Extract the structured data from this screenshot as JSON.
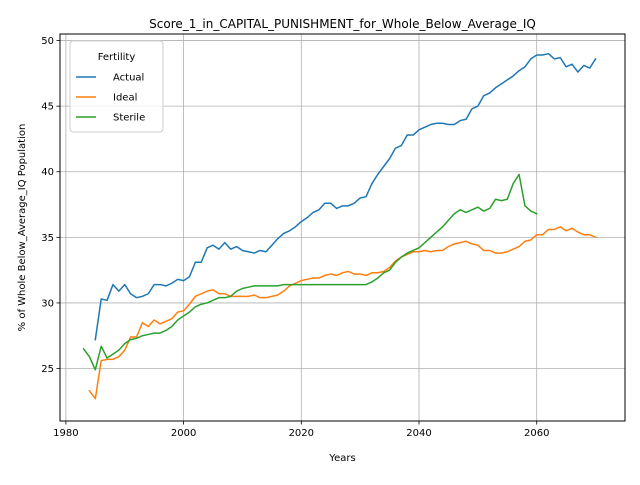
{
  "chart_data": {
    "type": "line",
    "title": "Score_1_in_CAPITAL_PUNISHMENT_for_Whole_Below_Average_IQ",
    "xlabel": "Years",
    "ylabel": "% of Whole Below_Average_IQ Population",
    "xlim": [
      1979,
      2075
    ],
    "ylim": [
      21,
      50.5
    ],
    "x_ticks": [
      1980,
      2000,
      2020,
      2040,
      2060
    ],
    "y_ticks": [
      25,
      30,
      35,
      40,
      45,
      50
    ],
    "grid": true,
    "legend": {
      "title": "Fertility",
      "placement": "top-left"
    },
    "series": [
      {
        "name": "Actual",
        "color": "#1f77b4",
        "x": [
          1985,
          1986,
          1987,
          1988,
          1989,
          1990,
          1991,
          1992,
          1993,
          1994,
          1995,
          1996,
          1997,
          1998,
          1999,
          2000,
          2001,
          2002,
          2003,
          2004,
          2005,
          2006,
          2007,
          2008,
          2009,
          2010,
          2011,
          2012,
          2013,
          2014,
          2015,
          2016,
          2017,
          2018,
          2019,
          2020,
          2021,
          2022,
          2023,
          2024,
          2025,
          2026,
          2027,
          2028,
          2029,
          2030,
          2031,
          2032,
          2033,
          2034,
          2035,
          2036,
          2037,
          2038,
          2039,
          2040,
          2041,
          2042,
          2043,
          2044,
          2045,
          2046,
          2047,
          2048,
          2049,
          2050,
          2051,
          2052,
          2053,
          2054,
          2055,
          2056,
          2057,
          2058,
          2059,
          2060,
          2061,
          2062,
          2063,
          2064,
          2065,
          2066,
          2067,
          2068,
          2069,
          2070
        ],
        "values": [
          27.2,
          30.3,
          30.2,
          31.4,
          30.9,
          31.4,
          30.7,
          30.4,
          30.5,
          30.7,
          31.4,
          31.4,
          31.3,
          31.5,
          31.8,
          31.7,
          32.0,
          33.1,
          33.1,
          34.2,
          34.4,
          34.1,
          34.6,
          34.1,
          34.3,
          34.0,
          33.9,
          33.8,
          34.0,
          33.9,
          34.4,
          34.9,
          35.3,
          35.5,
          35.8,
          36.2,
          36.5,
          36.9,
          37.1,
          37.6,
          37.6,
          37.2,
          37.4,
          37.4,
          37.6,
          38.0,
          38.1,
          39.1,
          39.8,
          40.4,
          41.0,
          41.8,
          42.0,
          42.8,
          42.8,
          43.2,
          43.4,
          43.6,
          43.7,
          43.7,
          43.6,
          43.6,
          43.9,
          44.0,
          44.8,
          45.0,
          45.8,
          46.0,
          46.4,
          46.7,
          47.0,
          47.3,
          47.7,
          48.0,
          48.6,
          48.9,
          48.9,
          49.0,
          48.6,
          48.7,
          48.0,
          48.2,
          47.6,
          48.1,
          47.9,
          48.6
        ]
      },
      {
        "name": "Ideal",
        "color": "#ff7f0e",
        "x": [
          1984,
          1985,
          1986,
          1987,
          1988,
          1989,
          1990,
          1991,
          1992,
          1993,
          1994,
          1995,
          1996,
          1997,
          1998,
          1999,
          2000,
          2001,
          2002,
          2003,
          2004,
          2005,
          2006,
          2007,
          2008,
          2009,
          2010,
          2011,
          2012,
          2013,
          2014,
          2015,
          2016,
          2017,
          2018,
          2019,
          2020,
          2021,
          2022,
          2023,
          2024,
          2025,
          2026,
          2027,
          2028,
          2029,
          2030,
          2031,
          2032,
          2033,
          2034,
          2035,
          2036,
          2037,
          2038,
          2039,
          2040,
          2041,
          2042,
          2043,
          2044,
          2045,
          2046,
          2047,
          2048,
          2049,
          2050,
          2051,
          2052,
          2053,
          2054,
          2055,
          2056,
          2057,
          2058,
          2059,
          2060,
          2061,
          2062,
          2063,
          2064,
          2065,
          2066,
          2067,
          2068,
          2069,
          2070
        ],
        "values": [
          23.3,
          22.7,
          25.6,
          25.7,
          25.7,
          25.9,
          26.4,
          27.4,
          27.4,
          28.5,
          28.2,
          28.7,
          28.4,
          28.6,
          28.8,
          29.3,
          29.4,
          29.9,
          30.5,
          30.7,
          30.9,
          31.0,
          30.7,
          30.7,
          30.5,
          30.5,
          30.5,
          30.5,
          30.6,
          30.4,
          30.4,
          30.5,
          30.6,
          30.9,
          31.3,
          31.5,
          31.7,
          31.8,
          31.9,
          31.9,
          32.1,
          32.2,
          32.1,
          32.3,
          32.4,
          32.2,
          32.2,
          32.1,
          32.3,
          32.3,
          32.4,
          32.7,
          33.2,
          33.5,
          33.7,
          33.9,
          33.9,
          34.0,
          33.9,
          34.0,
          34.0,
          34.3,
          34.5,
          34.6,
          34.7,
          34.5,
          34.4,
          34.0,
          34.0,
          33.8,
          33.8,
          33.9,
          34.1,
          34.3,
          34.7,
          34.8,
          35.2,
          35.2,
          35.6,
          35.6,
          35.8,
          35.5,
          35.7,
          35.4,
          35.2,
          35.2,
          35.0
        ]
      },
      {
        "name": "Sterile",
        "color": "#2ca02c",
        "x": [
          1983,
          1984,
          1985,
          1986,
          1987,
          1988,
          1989,
          1990,
          1991,
          1992,
          1993,
          1994,
          1995,
          1996,
          1997,
          1998,
          1999,
          2000,
          2001,
          2002,
          2003,
          2004,
          2005,
          2006,
          2007,
          2008,
          2009,
          2010,
          2011,
          2012,
          2013,
          2014,
          2015,
          2016,
          2017,
          2018,
          2019,
          2020,
          2021,
          2022,
          2023,
          2024,
          2025,
          2026,
          2027,
          2028,
          2029,
          2030,
          2031,
          2032,
          2033,
          2034,
          2035,
          2036,
          2037,
          2038,
          2039,
          2040,
          2041,
          2042,
          2043,
          2044,
          2045,
          2046,
          2047,
          2048,
          2049,
          2050,
          2051,
          2052,
          2053,
          2054,
          2055,
          2056,
          2057,
          2058,
          2059,
          2060
        ],
        "values": [
          26.5,
          25.9,
          24.9,
          26.7,
          25.8,
          26.1,
          26.4,
          26.9,
          27.2,
          27.3,
          27.5,
          27.6,
          27.7,
          27.7,
          27.9,
          28.2,
          28.7,
          29.0,
          29.3,
          29.7,
          29.9,
          30.0,
          30.2,
          30.4,
          30.4,
          30.5,
          30.9,
          31.1,
          31.2,
          31.3,
          31.3,
          31.3,
          31.3,
          31.3,
          31.4,
          31.4,
          31.4,
          31.4,
          31.4,
          31.4,
          31.4,
          31.4,
          31.4,
          31.4,
          31.4,
          31.4,
          31.4,
          31.4,
          31.4,
          31.6,
          31.9,
          32.3,
          32.5,
          33.1,
          33.5,
          33.8,
          34.0,
          34.2,
          34.6,
          35.0,
          35.4,
          35.8,
          36.3,
          36.8,
          37.1,
          36.9,
          37.1,
          37.3,
          37.0,
          37.2,
          37.9,
          37.8,
          37.9,
          39.1,
          39.8,
          37.4,
          37.0,
          36.8
        ]
      }
    ]
  }
}
